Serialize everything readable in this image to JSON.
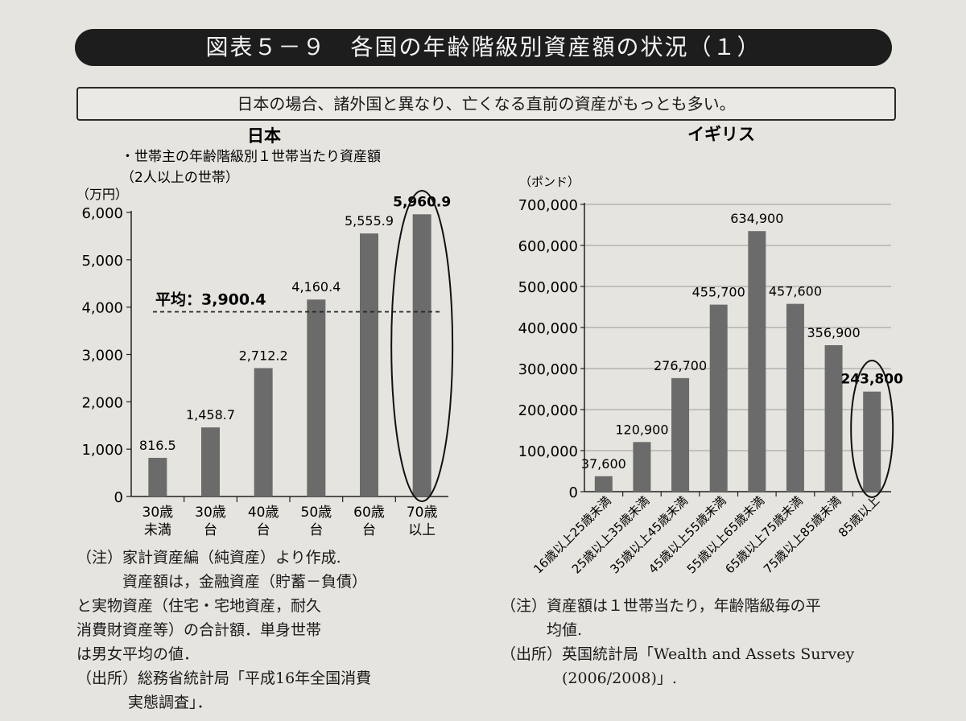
{
  "header": {
    "figure_title": "図表５－９　各国の年齢階級別資産額の状況（１）",
    "summary": "日本の場合、諸外国と異なり、亡くなる直前の資産がもっとも多い。"
  },
  "chart_data": [
    {
      "type": "bar",
      "title": "日本",
      "subtitle_lines": [
        "・世帯主の年齢階級別１世帯当たり資産額",
        "（2人以上の世帯）"
      ],
      "ylabel": "（万円）",
      "ylim": [
        0,
        6000
      ],
      "yticks": [
        0,
        1000,
        2000,
        3000,
        4000,
        5000,
        6000
      ],
      "ytick_labels": [
        "0",
        "1,000",
        "2,000",
        "3,000",
        "4,000",
        "5,000",
        "6,000"
      ],
      "categories": [
        [
          "30歳",
          "未満"
        ],
        [
          "30歳",
          "台"
        ],
        [
          "40歳",
          "台"
        ],
        [
          "50歳",
          "台"
        ],
        [
          "60歳",
          "台"
        ],
        [
          "70歳",
          "以上"
        ]
      ],
      "values": [
        816.5,
        1458.7,
        2712.2,
        4160.4,
        5555.9,
        5960.9
      ],
      "value_labels": [
        "816.5",
        "1,458.7",
        "2,712.2",
        "4,160.4",
        "5,555.9",
        "5,960.9"
      ],
      "highlight_index": 5,
      "average": {
        "label": "平均：3,900.4",
        "value": 3900.4
      },
      "grid": false,
      "colors": {
        "bar": "#6b6b6b"
      }
    },
    {
      "type": "bar",
      "title": "イギリス",
      "ylabel": "（ポンド）",
      "ylim": [
        0,
        700000
      ],
      "yticks": [
        0,
        100000,
        200000,
        300000,
        400000,
        500000,
        600000,
        700000
      ],
      "ytick_labels": [
        "0",
        "100,000",
        "200,000",
        "300,000",
        "400,000",
        "500,000",
        "600,000",
        "700,000"
      ],
      "categories": [
        "16歳以上25歳未満",
        "25歳以上35歳未満",
        "35歳以上45歳未満",
        "45歳以上55歳未満",
        "55歳以上65歳未満",
        "65歳以上75歳未満",
        "75歳以上85歳未満",
        "85歳以上"
      ],
      "values": [
        37600,
        120900,
        276700,
        455700,
        634900,
        457600,
        356900,
        243800
      ],
      "value_labels": [
        "37,600",
        "120,900",
        "276,700",
        "455,700",
        "634,900",
        "457,600",
        "356,900",
        "243,800"
      ],
      "highlight_index": 7,
      "grid": true,
      "colors": {
        "bar": "#6b6b6b"
      }
    }
  ],
  "notes_japan": [
    "（注）家計資産編（純資産）より作成.",
    "　　　資産額は，金融資産（貯蓄－負債）",
    "と実物資産（住宅・宅地資産，耐久",
    "消費財資産等）の合計額．単身世帯",
    "は男女平均の値．",
    "（出所）総務省統計局「平成16年全国消費",
    "実態調査」．"
  ],
  "notes_uk": [
    "（注）資産額は１世帯当たり，年齢階級毎の平",
    "　　　均値.",
    "（出所）英国統計局「Wealth and Assets Survey",
    "　　　　(2006/2008)」."
  ]
}
